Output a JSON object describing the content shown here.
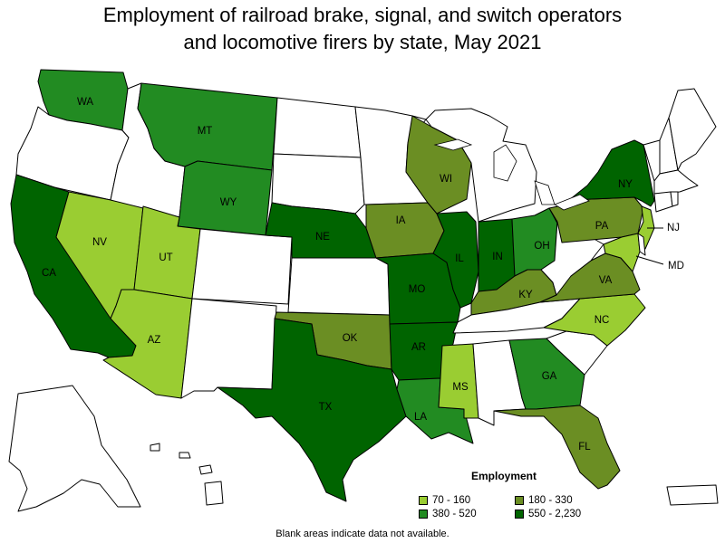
{
  "title_line1": "Employment of railroad brake, signal, and switch operators",
  "title_line2": "and locomotive firers by state, May 2021",
  "legend": {
    "title": "Employment",
    "items": [
      {
        "label": "70 - 160",
        "color": "#9acd32"
      },
      {
        "label": "180 - 330",
        "color": "#6b8e23"
      },
      {
        "label": "380 - 520",
        "color": "#228b22"
      },
      {
        "label": "550 - 2,230",
        "color": "#006400"
      }
    ]
  },
  "no_data_color": "#ffffff",
  "footnote": "Blank areas indicate data not available.",
  "states": {
    "WA": {
      "label": "WA",
      "class": 2
    },
    "OR": {
      "label": "",
      "class": null
    },
    "CA": {
      "label": "CA",
      "class": 3
    },
    "NV": {
      "label": "NV",
      "class": 0
    },
    "ID": {
      "label": "",
      "class": null
    },
    "MT": {
      "label": "MT",
      "class": 2
    },
    "WY": {
      "label": "WY",
      "class": 2
    },
    "UT": {
      "label": "UT",
      "class": 0
    },
    "AZ": {
      "label": "AZ",
      "class": 0
    },
    "CO": {
      "label": "",
      "class": null
    },
    "NM": {
      "label": "",
      "class": null
    },
    "ND": {
      "label": "",
      "class": null
    },
    "SD": {
      "label": "",
      "class": null
    },
    "NE": {
      "label": "NE",
      "class": 3
    },
    "KS": {
      "label": "",
      "class": null
    },
    "OK": {
      "label": "OK",
      "class": 1
    },
    "TX": {
      "label": "TX",
      "class": 3
    },
    "MN": {
      "label": "",
      "class": null
    },
    "IA": {
      "label": "IA",
      "class": 1
    },
    "MO": {
      "label": "MO",
      "class": 3
    },
    "AR": {
      "label": "AR",
      "class": 3
    },
    "LA": {
      "label": "LA",
      "class": 2
    },
    "WI": {
      "label": "WI",
      "class": 1
    },
    "IL": {
      "label": "IL",
      "class": 3
    },
    "MI": {
      "label": "",
      "class": null
    },
    "IN": {
      "label": "IN",
      "class": 3
    },
    "OH": {
      "label": "OH",
      "class": 2
    },
    "KY": {
      "label": "KY",
      "class": 1
    },
    "TN": {
      "label": "",
      "class": null
    },
    "MS": {
      "label": "MS",
      "class": 0
    },
    "AL": {
      "label": "",
      "class": null
    },
    "GA": {
      "label": "GA",
      "class": 2
    },
    "FL": {
      "label": "FL",
      "class": 1
    },
    "SC": {
      "label": "",
      "class": null
    },
    "NC": {
      "label": "NC",
      "class": 0
    },
    "VA": {
      "label": "VA",
      "class": 1
    },
    "WV": {
      "label": "",
      "class": null
    },
    "PA": {
      "label": "PA",
      "class": 1
    },
    "NY": {
      "label": "NY",
      "class": 3
    },
    "NJ": {
      "label": "NJ",
      "class": 0
    },
    "MD": {
      "label": "MD",
      "class": 0
    },
    "DE": {
      "label": "",
      "class": null
    },
    "ME": {
      "label": "",
      "class": null
    },
    "NH": {
      "label": "",
      "class": null
    },
    "VT": {
      "label": "",
      "class": null
    },
    "MA": {
      "label": "",
      "class": null
    },
    "CT": {
      "label": "",
      "class": null
    },
    "RI": {
      "label": "",
      "class": null
    },
    "AK": {
      "label": "",
      "class": null
    },
    "HI": {
      "label": "",
      "class": null
    },
    "PR": {
      "label": "",
      "class": null
    }
  }
}
